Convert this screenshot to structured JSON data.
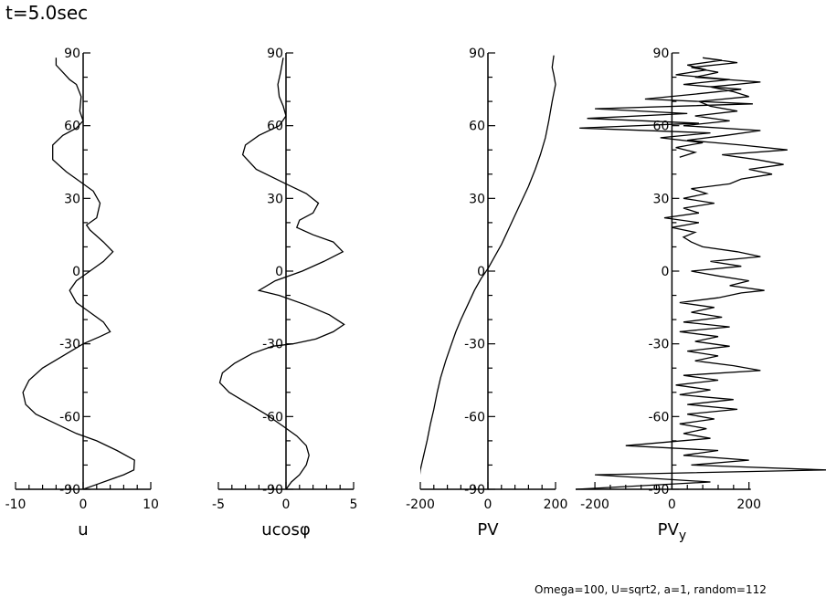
{
  "header": {
    "title": "t=5.0sec"
  },
  "footer": {
    "parameters": "Omega=100, U=sqrt2, a=1, random=112"
  },
  "chart_data": [
    {
      "type": "line",
      "xlabel": "u",
      "xlim": [
        -10,
        10
      ],
      "xticks": [
        -10,
        0,
        10
      ],
      "ylim": [
        -90,
        90
      ],
      "yticks": [
        -90,
        -60,
        -30,
        0,
        30,
        60,
        90
      ],
      "series": [
        {
          "x": [
            0,
            2,
            4,
            6,
            7.5,
            7.6,
            5,
            2,
            -1,
            -4,
            -7,
            -8.5,
            -8.9,
            -8,
            -6,
            -3,
            0,
            2.5,
            4,
            3,
            1,
            -1,
            -2,
            -1,
            1,
            3,
            4.4,
            3,
            1,
            0.5,
            2,
            2.5,
            1.5,
            0,
            -2.5,
            -4.5,
            -4.5,
            -3,
            -1,
            0,
            -0.5,
            -0.3,
            -1,
            -2,
            -3,
            -4,
            -4
          ],
          "y": [
            -90,
            -88,
            -86,
            -84,
            -82,
            -78,
            -74,
            -70,
            -67,
            -63,
            -59,
            -55,
            -50,
            -45,
            -40,
            -35,
            -30,
            -27,
            -25,
            -21,
            -17,
            -13,
            -8,
            -4,
            0,
            4,
            8,
            12,
            17,
            19,
            22,
            28,
            33,
            36,
            41,
            46,
            52,
            56,
            59,
            62,
            66,
            72,
            77,
            79,
            82,
            85,
            88
          ]
        }
      ]
    },
    {
      "type": "line",
      "xlabel": "ucosφ",
      "xlim": [
        -5,
        5
      ],
      "xticks": [
        -5,
        0,
        5
      ],
      "ylim": [
        -90,
        90
      ],
      "yticks": [
        -90,
        -60,
        -30,
        0,
        30,
        60,
        90
      ],
      "series": [
        {
          "x": [
            0,
            0.4,
            1,
            1.5,
            1.7,
            1.5,
            0.8,
            -0.2,
            -1.5,
            -3,
            -4.2,
            -4.9,
            -4.7,
            -3.8,
            -2.5,
            -1,
            0.5,
            2.2,
            3.5,
            4.3,
            3.2,
            1.5,
            -0.5,
            -2,
            -0.8,
            1.2,
            2.8,
            4.2,
            3.5,
            2,
            0.8,
            1,
            2,
            2.4,
            1.5,
            0,
            -2.2,
            -3.2,
            -3,
            -2,
            -0.5,
            0,
            -0.2,
            -0.5,
            -0.6,
            -0.4,
            -0.2
          ],
          "y": [
            -90,
            -87,
            -84,
            -80,
            -76,
            -72,
            -68,
            -64,
            -59,
            -54,
            -50,
            -46,
            -42,
            -38,
            -34,
            -31,
            -30,
            -28,
            -25,
            -22,
            -18,
            -14,
            -10,
            -8,
            -4,
            0,
            4,
            8,
            12,
            15,
            18,
            21,
            24,
            28,
            32,
            36,
            42,
            48,
            52,
            56,
            60,
            64,
            68,
            72,
            77,
            82,
            88
          ]
        }
      ]
    },
    {
      "type": "line",
      "xlabel": "PV",
      "xlim": [
        -200,
        200
      ],
      "xticks": [
        -200,
        0,
        200
      ],
      "ylim": [
        -90,
        90
      ],
      "yticks": [
        -90,
        -60,
        -30,
        0,
        30,
        60,
        90
      ],
      "series": [
        {
          "x": [
            -205,
            -200,
            -190,
            -180,
            -170,
            -160,
            -150,
            -140,
            -125,
            -110,
            -95,
            -80,
            -60,
            -40,
            -20,
            0,
            20,
            40,
            60,
            80,
            100,
            120,
            140,
            155,
            170,
            180,
            190,
            200,
            195,
            190,
            195
          ],
          "y": [
            -88,
            -82,
            -76,
            -70,
            -63,
            -57,
            -50,
            -44,
            -37,
            -31,
            -25,
            -20,
            -14,
            -8,
            -3,
            1,
            6,
            11,
            17,
            23,
            29,
            35,
            42,
            48,
            55,
            62,
            70,
            77,
            81,
            84,
            89
          ]
        }
      ]
    },
    {
      "type": "line",
      "xlabel": "PV",
      "xlabel_sub": "y",
      "xlim": [
        -250,
        400
      ],
      "xticks": [
        -200,
        0,
        200
      ],
      "ylim": [
        -90,
        90
      ],
      "yticks": [
        -90,
        -60,
        -30,
        0,
        30,
        60,
        90
      ],
      "series": [
        {
          "x": [
            -250,
            100,
            -200,
            400,
            50,
            200,
            30,
            120,
            -120,
            100,
            30,
            90,
            20,
            110,
            40,
            170,
            40,
            160,
            20,
            100,
            10,
            120,
            30,
            230,
            160,
            60,
            120,
            40,
            150,
            60,
            120,
            20,
            150,
            30,
            130,
            50,
            110,
            20,
            120,
            180,
            240,
            150,
            200,
            120,
            50,
            180,
            100,
            230,
            170,
            80,
            50,
            30,
            60,
            0,
            70,
            -20,
            70,
            30,
            110,
            30,
            90,
            50,
            150,
            180,
            260,
            200,
            290,
            220,
            130,
            300,
            180,
            40,
            140,
            230,
            30,
            150,
            60,
            170,
            100,
            70,
            200,
            160,
            100,
            230,
            60,
            120,
            50,
            170,
            80,
            130,
            40,
            90,
            10,
            150,
            30,
            180,
            60,
            -70,
            210,
            -200,
            40,
            -220,
            70,
            -240,
            100,
            -30,
            80,
            10,
            60,
            20
          ],
          "y": [
            -90,
            -87,
            -84,
            -82,
            -80,
            -78,
            -76,
            -74,
            -72,
            -69,
            -67,
            -65,
            -63,
            -61,
            -59,
            -57,
            -55,
            -53,
            -51,
            -49,
            -47,
            -45,
            -43,
            -41,
            -39,
            -37,
            -35,
            -33,
            -31,
            -29,
            -27,
            -25,
            -23,
            -21,
            -19,
            -17,
            -15,
            -13,
            -11,
            -9,
            -8,
            -6,
            -4,
            -2,
            0,
            2,
            4,
            6,
            8,
            10,
            12,
            14,
            16,
            18,
            20,
            22,
            24,
            26,
            28,
            30,
            32,
            34,
            36,
            38,
            40,
            42,
            44,
            46,
            48,
            50,
            52,
            54,
            56,
            58,
            60,
            62,
            64,
            66,
            68,
            70,
            72,
            74,
            76,
            78,
            80,
            82,
            84,
            86,
            88,
            87,
            85,
            83,
            81,
            79,
            77,
            75,
            73,
            71,
            69,
            67,
            65,
            63,
            61,
            59,
            57,
            55,
            53,
            51,
            49,
            47
          ]
        }
      ]
    }
  ]
}
